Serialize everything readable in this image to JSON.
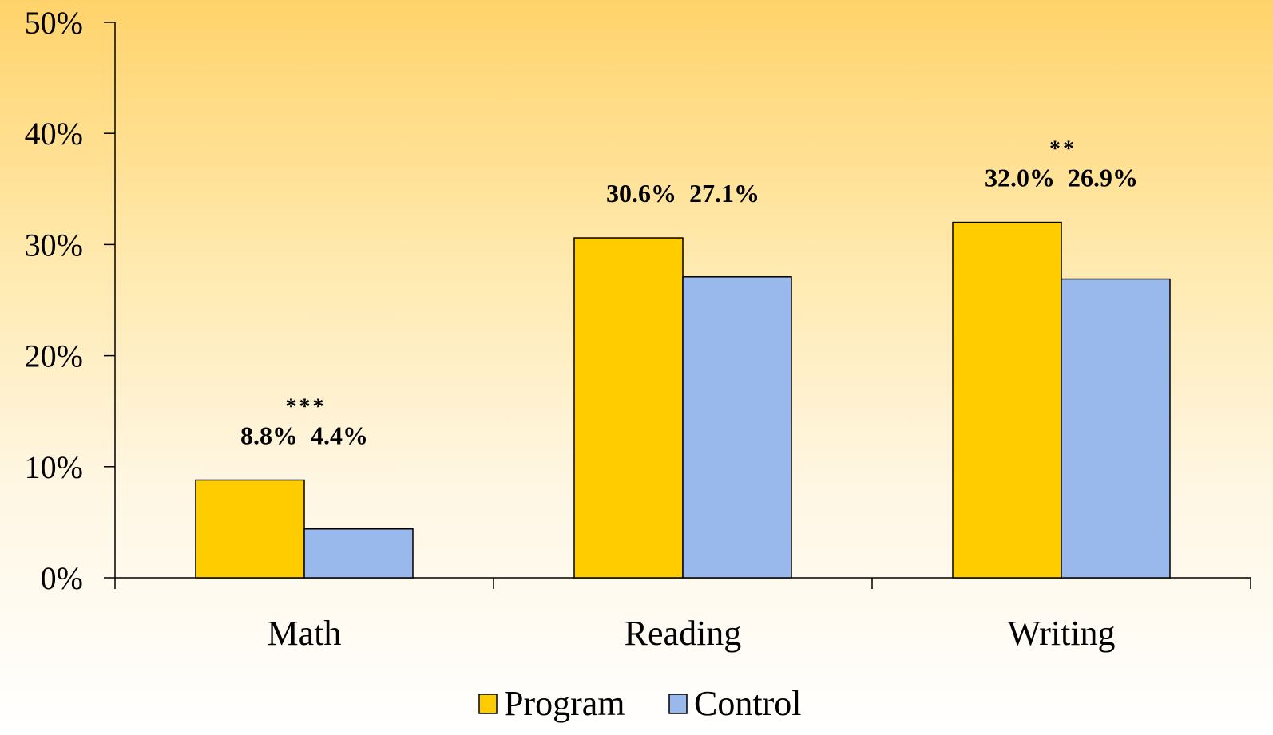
{
  "chart_data": {
    "type": "bar",
    "categories": [
      "Math",
      "Reading",
      "Writing"
    ],
    "series": [
      {
        "name": "Program",
        "values": [
          8.8,
          30.6,
          32.0
        ],
        "color": "#ffcc00",
        "labels": [
          "8.8%",
          "30.6%",
          "32.0%"
        ]
      },
      {
        "name": "Control",
        "values": [
          4.4,
          27.1,
          26.9
        ],
        "color": "#99b9ec",
        "labels": [
          "4.4%",
          "27.1%",
          "26.9%"
        ]
      }
    ],
    "significance": [
      "***",
      "",
      "**"
    ],
    "ylim": [
      0,
      50
    ],
    "yticks": [
      "0%",
      "10%",
      "20%",
      "30%",
      "40%",
      "50%"
    ],
    "title": "",
    "xlabel": "",
    "ylabel": "",
    "grid": false,
    "legend": "bottom"
  }
}
